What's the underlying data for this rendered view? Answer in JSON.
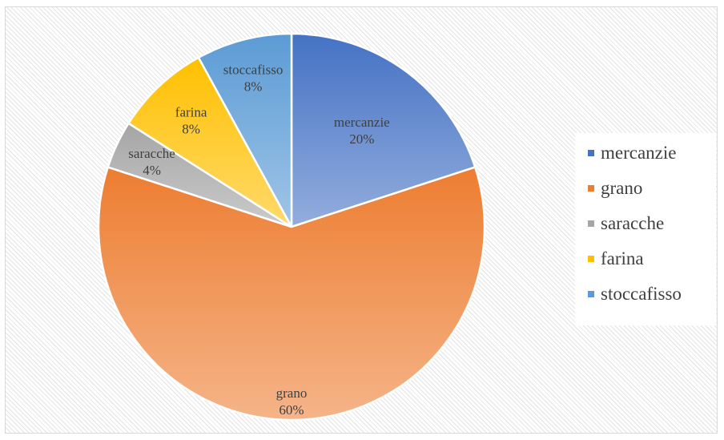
{
  "chart_data": {
    "type": "pie",
    "title": "",
    "categories": [
      "mercanzie",
      "grano",
      "saracche",
      "farina",
      "stoccafisso"
    ],
    "values": [
      20,
      60,
      4,
      8,
      8
    ],
    "labels": [
      "20%",
      "60%",
      "4%",
      "8%",
      "8%"
    ],
    "colors": [
      "#4472c4",
      "#ed7d31",
      "#a5a5a5",
      "#ffc000",
      "#5b9bd5"
    ],
    "legend_position": "right",
    "grid": false
  }
}
